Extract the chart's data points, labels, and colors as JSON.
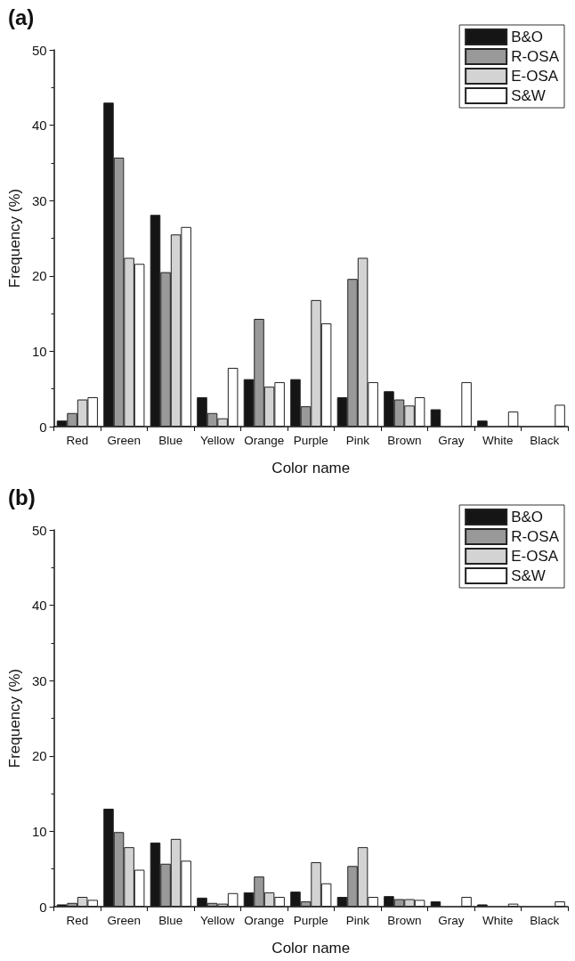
{
  "chart_data": [
    {
      "type": "bar",
      "title": "(a)",
      "xlabel": "Color name",
      "ylabel": "Frequency (%)",
      "categories": [
        "Red",
        "Green",
        "Blue",
        "Yellow",
        "Orange",
        "Purple",
        "Pink",
        "Brown",
        "Gray",
        "White",
        "Black"
      ],
      "ylim": [
        0,
        50
      ],
      "yticks": [
        0,
        10,
        20,
        30,
        40,
        50
      ],
      "grid": false,
      "legend": "top right",
      "series": [
        {
          "name": "B&O",
          "color": "#151515",
          "values": [
            0.8,
            43,
            28.1,
            3.9,
            6.3,
            6.3,
            3.9,
            4.7,
            2.3,
            0.8,
            0
          ]
        },
        {
          "name": "R-OSA",
          "color": "#999999",
          "values": [
            1.8,
            35.7,
            20.5,
            1.8,
            14.3,
            2.7,
            19.6,
            3.6,
            0,
            0,
            0
          ]
        },
        {
          "name": "E-OSA",
          "color": "#d3d3d3",
          "values": [
            3.6,
            22.4,
            25.5,
            1.1,
            5.3,
            16.8,
            22.4,
            2.8,
            0,
            0,
            0
          ]
        },
        {
          "name": "S&W",
          "color": "#ffffff",
          "values": [
            3.9,
            21.6,
            26.5,
            7.8,
            5.9,
            13.7,
            5.9,
            3.9,
            5.9,
            2.0,
            2.9
          ]
        }
      ]
    },
    {
      "type": "bar",
      "title": "(b)",
      "xlabel": "Color name",
      "ylabel": "Frequency (%)",
      "categories": [
        "Red",
        "Green",
        "Blue",
        "Yellow",
        "Orange",
        "Purple",
        "Pink",
        "Brown",
        "Gray",
        "White",
        "Black"
      ],
      "ylim": [
        0,
        50
      ],
      "yticks": [
        0,
        10,
        20,
        30,
        40,
        50
      ],
      "grid": false,
      "legend": "top right",
      "series": [
        {
          "name": "B&O",
          "color": "#151515",
          "values": [
            0.3,
            13.0,
            8.5,
            1.2,
            1.9,
            2.0,
            1.3,
            1.4,
            0.7,
            0.3,
            0
          ]
        },
        {
          "name": "R-OSA",
          "color": "#999999",
          "values": [
            0.5,
            9.9,
            5.7,
            0.5,
            4.0,
            0.7,
            5.4,
            1.0,
            0,
            0,
            0
          ]
        },
        {
          "name": "E-OSA",
          "color": "#d3d3d3",
          "values": [
            1.3,
            7.9,
            9.0,
            0.4,
            1.9,
            5.9,
            7.9,
            1.0,
            0,
            0,
            0
          ]
        },
        {
          "name": "S&W",
          "color": "#ffffff",
          "values": [
            0.9,
            4.9,
            6.1,
            1.8,
            1.3,
            3.1,
            1.3,
            0.9,
            1.3,
            0.4,
            0.7
          ]
        }
      ]
    }
  ]
}
